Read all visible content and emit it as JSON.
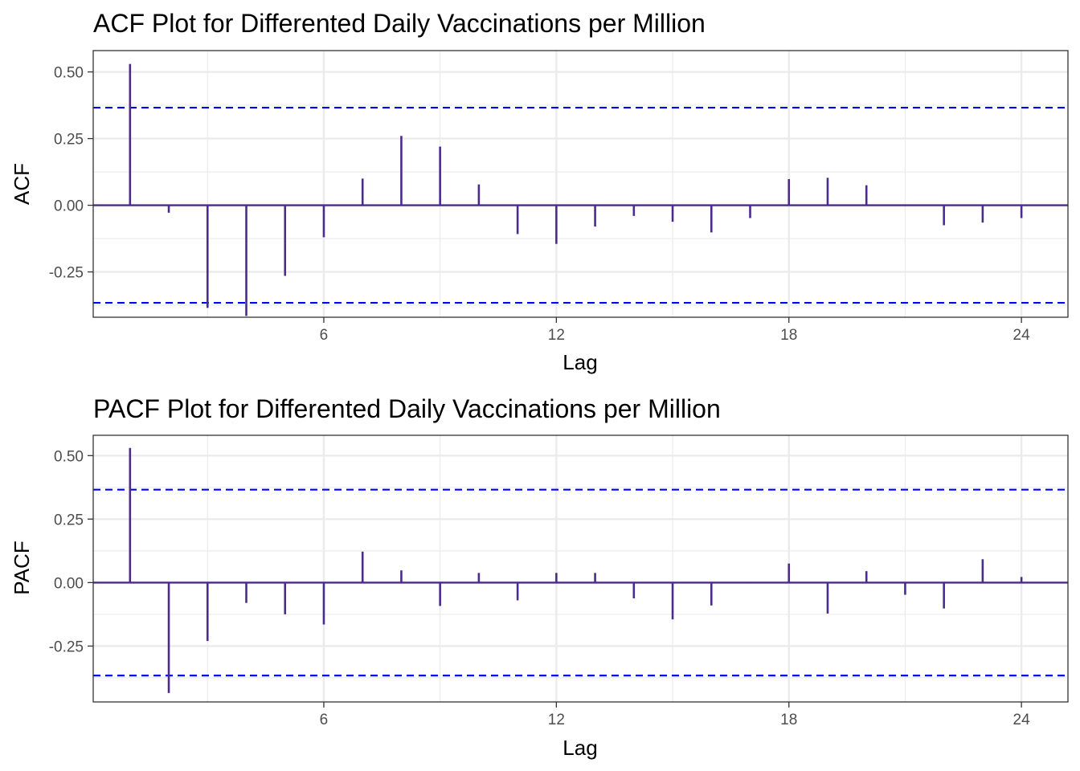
{
  "chart_data": [
    {
      "type": "bar",
      "subtype": "acf",
      "title": "ACF Plot for Differented Daily Vaccinations per Million",
      "xlabel": "Lag",
      "ylabel": "ACF",
      "xlim": [
        0.05,
        25.2
      ],
      "ylim": [
        -0.42,
        0.58
      ],
      "x_ticks": [
        6,
        12,
        18,
        24
      ],
      "x_tick_labels": [
        "6",
        "12",
        "18",
        "24"
      ],
      "y_ticks": [
        -0.25,
        0.0,
        0.25,
        0.5
      ],
      "y_tick_labels": [
        "-0.25",
        "0.00",
        "0.25",
        "0.50"
      ],
      "grid": true,
      "bar_color": "#4b2c8c",
      "ci_color": "#0000ff",
      "ci_bounds": [
        0.366,
        -0.366
      ],
      "lags": [
        1,
        2,
        3,
        4,
        5,
        6,
        7,
        8,
        9,
        10,
        11,
        12,
        13,
        14,
        15,
        16,
        17,
        18,
        19,
        20,
        21,
        22,
        23,
        24
      ],
      "values": [
        0.53,
        -0.028,
        -0.385,
        -0.415,
        -0.265,
        -0.12,
        0.1,
        0.26,
        0.22,
        0.078,
        -0.108,
        -0.145,
        -0.08,
        -0.04,
        -0.062,
        -0.102,
        -0.048,
        0.098,
        0.103,
        0.075,
        -0.003,
        -0.075,
        -0.065,
        -0.048
      ]
    },
    {
      "type": "bar",
      "subtype": "pacf",
      "title": "PACF Plot for Differented Daily Vaccinations per Million",
      "xlabel": "Lag",
      "ylabel": "PACF",
      "xlim": [
        0.05,
        25.2
      ],
      "ylim": [
        -0.47,
        0.58
      ],
      "x_ticks": [
        6,
        12,
        18,
        24
      ],
      "x_tick_labels": [
        "6",
        "12",
        "18",
        "24"
      ],
      "y_ticks": [
        -0.25,
        0.0,
        0.25,
        0.5
      ],
      "y_tick_labels": [
        "-0.25",
        "0.00",
        "0.25",
        "0.50"
      ],
      "grid": true,
      "bar_color": "#4b2c8c",
      "ci_color": "#0000ff",
      "ci_bounds": [
        0.366,
        -0.366
      ],
      "lags": [
        1,
        2,
        3,
        4,
        5,
        6,
        7,
        8,
        9,
        10,
        11,
        12,
        13,
        14,
        15,
        16,
        17,
        18,
        19,
        20,
        21,
        22,
        23,
        24
      ],
      "values": [
        0.53,
        -0.435,
        -0.23,
        -0.08,
        -0.125,
        -0.165,
        0.122,
        0.048,
        -0.092,
        0.038,
        -0.07,
        0.038,
        0.038,
        -0.062,
        -0.145,
        -0.09,
        -0.003,
        0.075,
        -0.122,
        0.045,
        -0.048,
        -0.102,
        0.092,
        0.022
      ]
    }
  ]
}
